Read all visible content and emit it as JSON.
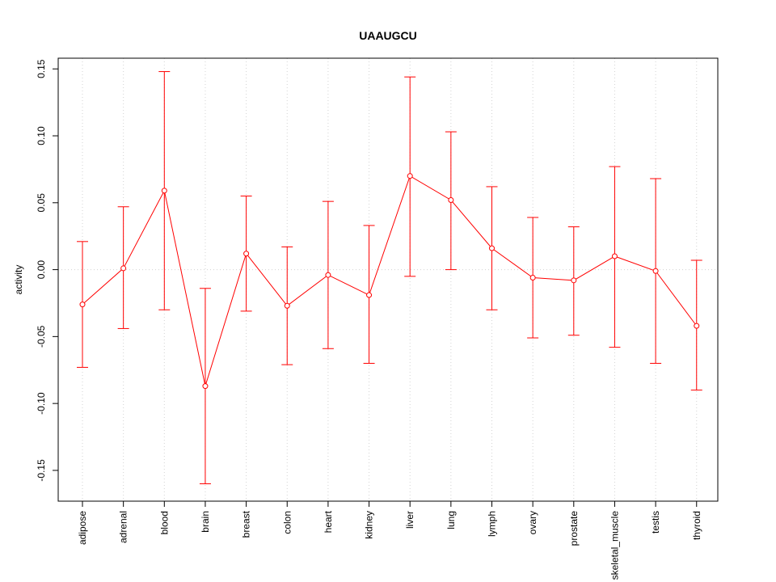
{
  "chart_data": {
    "type": "line",
    "title": "UAAUGCU",
    "xlabel": "",
    "ylabel": "activity",
    "ylim": [
      -0.173,
      0.158
    ],
    "yticks": [
      -0.15,
      -0.1,
      -0.05,
      0.0,
      0.05,
      0.1,
      0.15
    ],
    "ytick_labels": [
      "-0.15",
      "-0.10",
      "-0.05",
      "0.00",
      "0.05",
      "0.10",
      "0.15"
    ],
    "grid": true,
    "reference_line": 0,
    "color": "#ff0000",
    "grid_color": "#d3d3d3",
    "categories": [
      "adipose",
      "adrenal",
      "blood",
      "brain",
      "breast",
      "colon",
      "heart",
      "kidney",
      "liver",
      "lung",
      "lymph",
      "ovary",
      "prostate",
      "skeletal_muscle",
      "testis",
      "thyroid"
    ],
    "values": [
      -0.026,
      0.001,
      0.059,
      -0.087,
      0.012,
      -0.027,
      -0.004,
      -0.019,
      0.07,
      0.052,
      0.016,
      -0.006,
      -0.008,
      0.01,
      -0.001,
      -0.042
    ],
    "upper": [
      0.021,
      0.047,
      0.148,
      -0.014,
      0.055,
      0.017,
      0.051,
      0.033,
      0.144,
      0.103,
      0.062,
      0.039,
      0.032,
      0.077,
      0.068,
      0.007
    ],
    "lower": [
      -0.073,
      -0.044,
      -0.03,
      -0.16,
      -0.031,
      -0.071,
      -0.059,
      -0.07,
      -0.005,
      0.0,
      -0.03,
      -0.051,
      -0.049,
      -0.058,
      -0.07,
      -0.09
    ]
  }
}
